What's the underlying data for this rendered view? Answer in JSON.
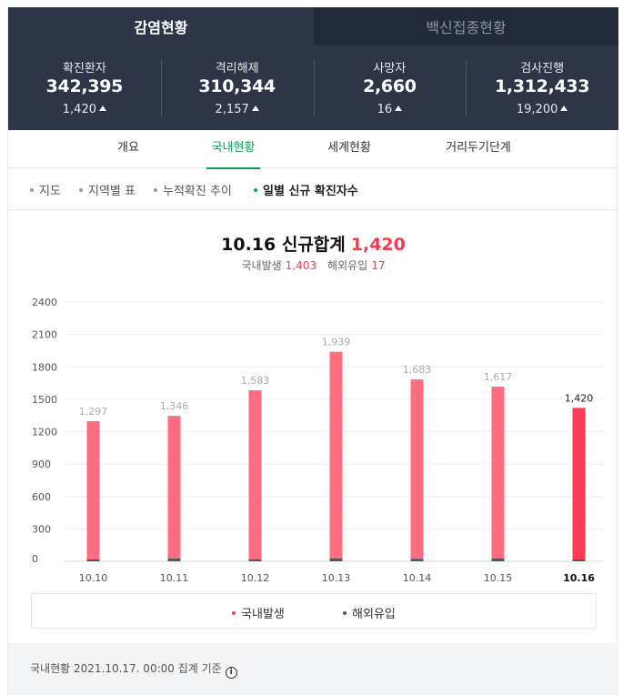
{
  "top_tabs": [
    {
      "label": "감염현황",
      "active": true
    },
    {
      "label": "백신접종현황",
      "active": false
    }
  ],
  "stats": [
    {
      "label": "확진환자",
      "value": "342,395",
      "delta": "1,420"
    },
    {
      "label": "격리해제",
      "value": "310,344",
      "delta": "2,157"
    },
    {
      "label": "사망자",
      "value": "2,660",
      "delta": "16"
    },
    {
      "label": "검사진행",
      "value": "1,312,433",
      "delta": "19,200"
    }
  ],
  "icons": {
    "delta": "up-triangle-icon",
    "info": "info-circle-icon"
  },
  "sub_tabs": [
    {
      "label": "개요",
      "active": false
    },
    {
      "label": "국내현황",
      "active": true
    },
    {
      "label": "세계현황",
      "active": false
    },
    {
      "label": "거리두기단계",
      "active": false
    }
  ],
  "filters": [
    {
      "label": "지도",
      "active": false
    },
    {
      "label": "지역별 표",
      "active": false
    },
    {
      "label": "누적확진 추이",
      "active": false
    },
    {
      "label": "일별 신규 확진자수",
      "active": true
    }
  ],
  "heading": {
    "date_label": "10.16 신규합계",
    "total": "1,420",
    "domestic_label": "국내발생",
    "domestic_value": "1,403",
    "overseas_label": "해외유입",
    "overseas_value": "17"
  },
  "colors": {
    "domestic": "#ff6e7f",
    "domestic_highlight": "#ff3b55",
    "overseas": "#555555",
    "accent_green": "#0ba050",
    "header_bg": "#2d3547"
  },
  "chart_data": {
    "type": "bar",
    "stacked": true,
    "categories": [
      "10.10",
      "10.11",
      "10.12",
      "10.13",
      "10.14",
      "10.15",
      "10.16"
    ],
    "totals": [
      1297,
      1346,
      1583,
      1939,
      1683,
      1617,
      1420
    ],
    "total_labels": [
      "1,297",
      "1,346",
      "1,583",
      "1,939",
      "1,683",
      "1,617",
      "1,420"
    ],
    "series": [
      {
        "name": "국내발생",
        "values": [
          1281,
          1321,
          1565,
          1913,
          1660,
          1592,
          1403
        ]
      },
      {
        "name": "해외유입",
        "values": [
          16,
          25,
          18,
          26,
          23,
          25,
          17
        ]
      }
    ],
    "highlight_index": 6,
    "yticks": [
      0,
      300,
      600,
      900,
      1200,
      1500,
      1800,
      2100,
      2400
    ],
    "ylim": [
      0,
      2400
    ],
    "grid": true,
    "legend_position": "bottom"
  },
  "footer": {
    "text": "국내현황 2021.10.17. 00:00 집계 기준",
    "info_glyph": "i"
  }
}
